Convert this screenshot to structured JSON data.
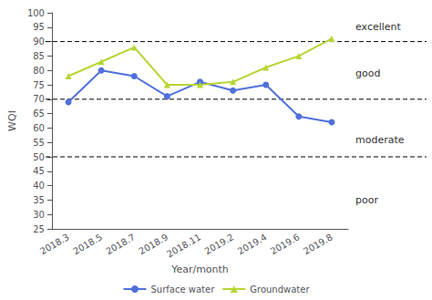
{
  "chart_data": {
    "type": "line",
    "xlabel": "Year/month",
    "ylabel": "WQI",
    "categories": [
      "2018.3",
      "2018.5",
      "2018.7",
      "2018.9",
      "2018.11",
      "2019.2",
      "2019.4",
      "2019.6",
      "2019.8"
    ],
    "series": [
      {
        "name": "Surface water",
        "marker": "circle",
        "values": [
          69,
          80,
          78,
          71,
          76,
          73,
          75,
          64,
          62
        ]
      },
      {
        "name": "Groundwater",
        "marker": "triangle",
        "values": [
          78,
          83,
          88,
          75,
          75,
          76,
          81,
          85,
          91
        ]
      }
    ],
    "hlines": [
      90,
      70,
      50
    ],
    "annotations": [
      {
        "text": "excellent",
        "y": 95
      },
      {
        "text": "good",
        "y": 79
      },
      {
        "text": "moderate",
        "y": 56
      },
      {
        "text": "poor",
        "y": 35
      }
    ],
    "ylim": [
      25,
      100
    ],
    "yticks": [
      25,
      30,
      35,
      40,
      45,
      50,
      55,
      60,
      65,
      70,
      75,
      80,
      85,
      90,
      95,
      100
    ],
    "grid": false,
    "legend": "bottom"
  }
}
